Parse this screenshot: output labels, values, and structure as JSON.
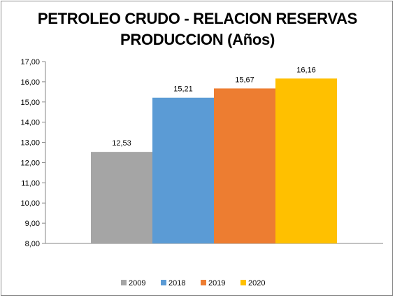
{
  "chart_data": {
    "type": "bar",
    "title": [
      "PETROLEO CRUDO - RELACION RESERVAS",
      "PRODUCCION (Años)"
    ],
    "xlabel": "",
    "ylabel": "",
    "categories": [
      "2009",
      "2018",
      "2019",
      "2020"
    ],
    "values": [
      12.53,
      15.21,
      15.67,
      16.16
    ],
    "data_labels": [
      "12,53",
      "15,21",
      "15,67",
      "16,16"
    ],
    "colors": [
      "#a5a5a5",
      "#5b9bd5",
      "#ed7d31",
      "#ffc000"
    ],
    "ylim": [
      8,
      17
    ],
    "yticks": [
      "8,00",
      "9,00",
      "10,00",
      "11,00",
      "12,00",
      "13,00",
      "14,00",
      "15,00",
      "16,00",
      "17,00"
    ],
    "grid": false,
    "legend_position": "bottom"
  }
}
